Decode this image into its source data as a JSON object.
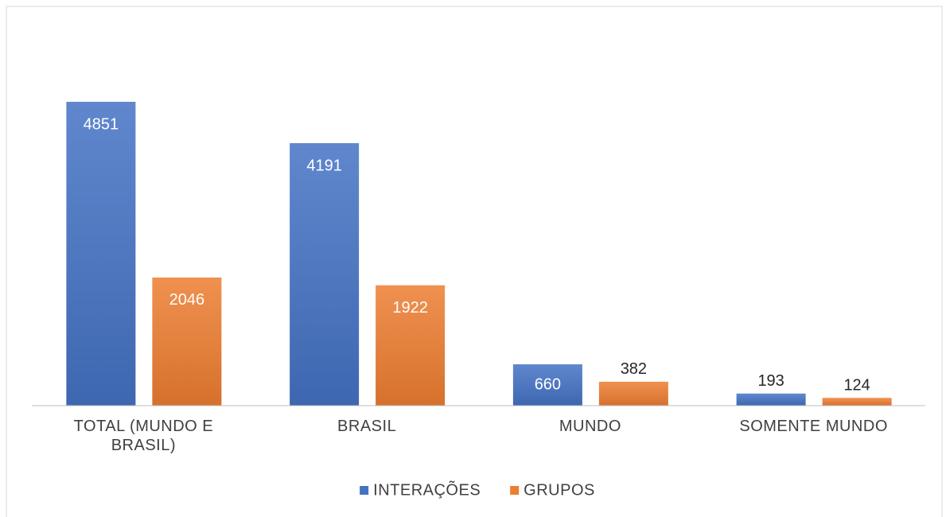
{
  "chart_data": {
    "type": "bar",
    "categories": [
      "TOTAL (MUNDO E BRASIL)",
      "BRASIL",
      "MUNDO",
      "SOMENTE MUNDO"
    ],
    "series": [
      {
        "name": "INTERAÇÕES",
        "color": "#4472c4",
        "values": [
          4851,
          4191,
          660,
          193
        ]
      },
      {
        "name": "GRUPOS",
        "color": "#ed7d31",
        "values": [
          2046,
          1922,
          382,
          124
        ]
      }
    ],
    "legend": "bottom"
  }
}
